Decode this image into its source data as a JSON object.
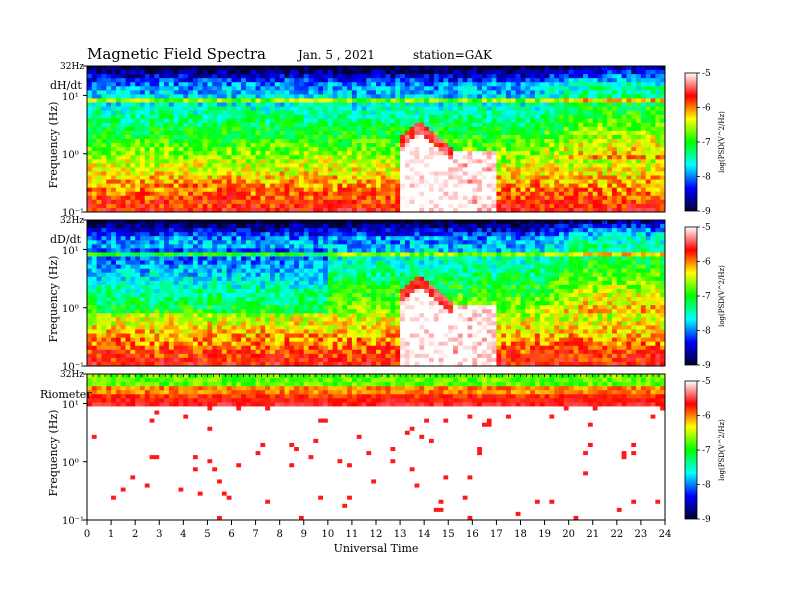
{
  "header": {
    "title": "Magnetic  Field  Spectra",
    "date": "Jan. 5  , 2021",
    "station": "station=GAK"
  },
  "colorbar": {
    "label": "log(PSD(V^2/Hz)",
    "ticks": [
      "-5",
      "-6",
      "-7",
      "-8",
      "-9"
    ],
    "colors": [
      "#ffffff",
      "#ff0000",
      "#ffff00",
      "#00ff00",
      "#00ffff",
      "#0000ff",
      "#000033"
    ]
  },
  "chart_data": [
    {
      "type": "heatmap",
      "panel_label": "dH/dt",
      "ylabel": "Frequency  (Hz)",
      "xlabel": "",
      "y_scale": "log",
      "ylim": [
        0.1,
        32
      ],
      "y_ticks": [
        "32Hz",
        "10¹",
        "10⁰",
        "10⁻¹"
      ],
      "xlim": [
        0,
        24
      ],
      "clim": [
        -9,
        -5
      ],
      "notes": "broadband enhancement starting ~13 UT, peak near 13.8 UT at ~2 Hz; steady line near 8 Hz"
    },
    {
      "type": "heatmap",
      "panel_label": "dD/dt",
      "ylabel": "Frequency  (Hz)",
      "xlabel": "",
      "y_scale": "log",
      "ylim": [
        0.1,
        32
      ],
      "y_ticks": [
        "32Hz",
        "10¹",
        "10⁰",
        "10⁻¹"
      ],
      "xlim": [
        0,
        24
      ],
      "clim": [
        -9,
        -5
      ]
    },
    {
      "type": "heatmap",
      "panel_label": "Riometer",
      "ylabel": "Frequency  (Hz)",
      "xlabel": "Universal Time",
      "y_scale": "log",
      "ylim": [
        0.1,
        32
      ],
      "y_ticks": [
        "32Hz",
        "10¹",
        "10⁰",
        "10⁻¹"
      ],
      "xlim": [
        0,
        24
      ],
      "x_ticks": [
        "0",
        "1",
        "2",
        "3",
        "4",
        "5",
        "6",
        "7",
        "8",
        "9",
        "10",
        "11",
        "12",
        "13",
        "14",
        "15",
        "16",
        "17",
        "18",
        "19",
        "20",
        "21",
        "22",
        "23",
        "24"
      ],
      "clim": [
        -9,
        -5
      ]
    }
  ]
}
